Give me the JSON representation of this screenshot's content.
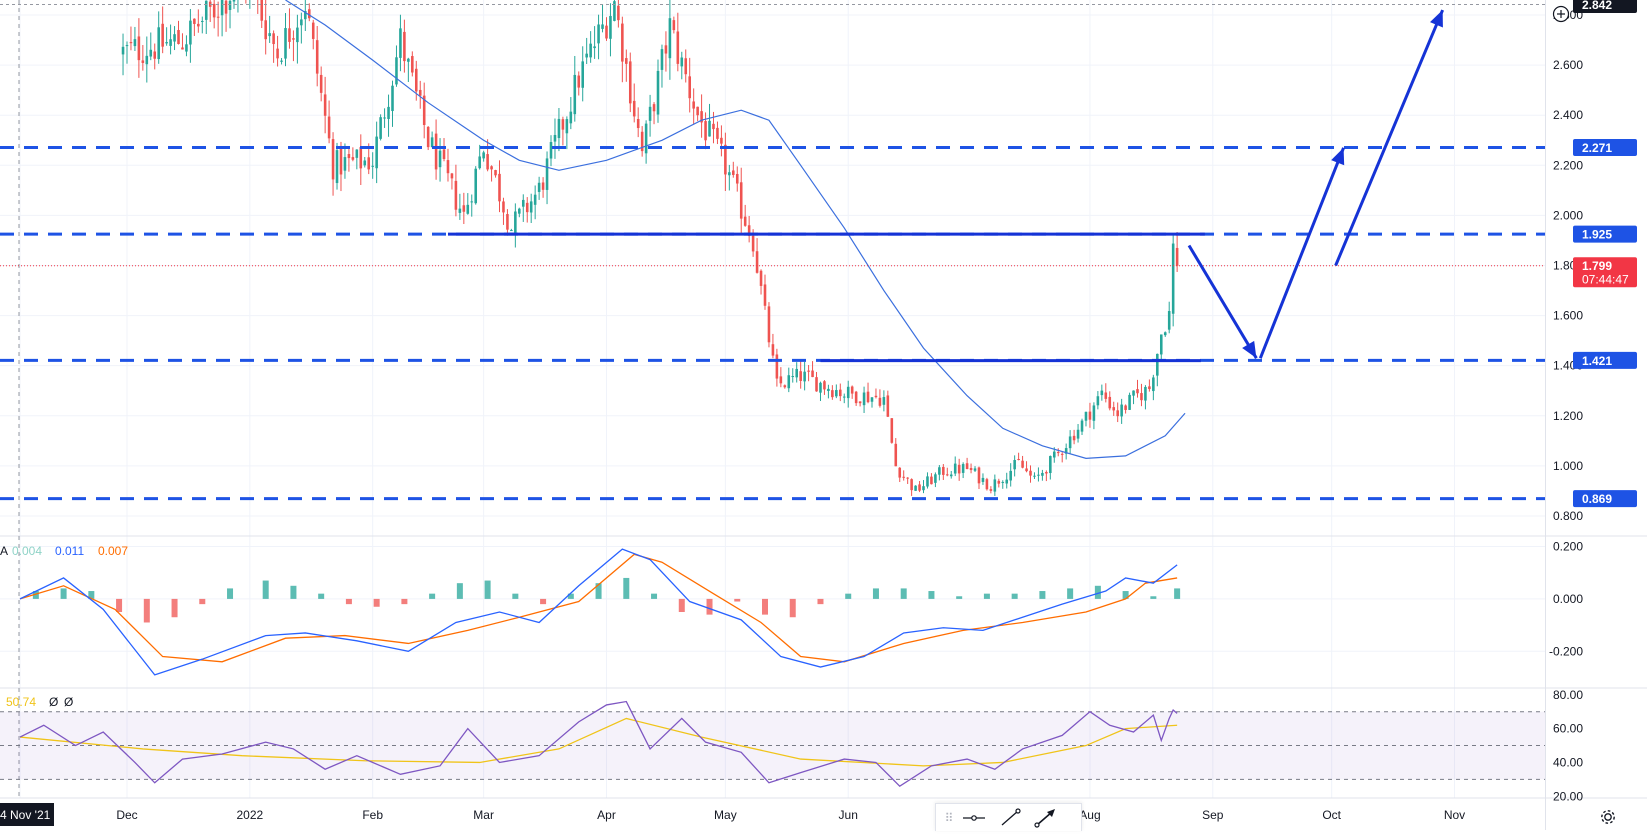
{
  "chart_data": [
    {
      "type": "candlestick",
      "panel": "price",
      "price_scale": {
        "ticks": [
          "2.800",
          "2.600",
          "2.400",
          "2.200",
          "2.000",
          "1.800",
          "1.600",
          "1.400",
          "1.200",
          "1.000",
          "0.800"
        ],
        "ylim": [
          0.72,
          2.86
        ]
      },
      "time_axis": {
        "labels": [
          "4 Nov '21",
          "Dec",
          "2022",
          "Feb",
          "Mar",
          "Apr",
          "May",
          "Jun",
          "Aug",
          "Sep",
          "Oct",
          "Nov"
        ],
        "range": [
          "2021-11-04",
          "2022-11-15"
        ]
      },
      "price_labels": [
        {
          "value": "2.842",
          "color": "#131722",
          "kind": "high"
        },
        {
          "value": "2.271",
          "color": "#1e53e5",
          "kind": "level"
        },
        {
          "value": "1.925",
          "color": "#1e53e5",
          "kind": "level"
        },
        {
          "value": "1.799",
          "color": "#f23645",
          "kind": "last",
          "countdown": "07:44:47"
        },
        {
          "value": "1.421",
          "color": "#1e53e5",
          "kind": "level"
        },
        {
          "value": "0.869",
          "color": "#1e53e5",
          "kind": "level"
        }
      ],
      "horizontal_levels": [
        2.842,
        2.271,
        1.925,
        1.421,
        0.869
      ],
      "solid_lines": [
        {
          "from": [
            "2022-02-20",
            1.925
          ],
          "to": [
            "2022-08-30",
            1.925
          ]
        },
        {
          "from": [
            "2022-05-25",
            1.42
          ],
          "to": [
            "2022-08-29",
            1.42
          ]
        }
      ],
      "projection_arrows": [
        {
          "from": [
            "2022-08-26",
            1.88
          ],
          "to": [
            "2022-09-12",
            1.43
          ]
        },
        {
          "from": [
            "2022-09-13",
            1.43
          ],
          "to": [
            "2022-10-04",
            2.27
          ]
        },
        {
          "from": [
            "2022-10-02",
            1.8
          ],
          "to": [
            "2022-10-29",
            2.82
          ]
        }
      ],
      "moving_average": {
        "name": "",
        "color": "#3b6fde",
        "points": [
          [
            "2022-01-10",
            2.86
          ],
          [
            "2022-01-20",
            2.76
          ],
          [
            "2022-02-01",
            2.62
          ],
          [
            "2022-02-15",
            2.45
          ],
          [
            "2022-03-01",
            2.3
          ],
          [
            "2022-03-10",
            2.22
          ],
          [
            "2022-03-20",
            2.18
          ],
          [
            "2022-04-01",
            2.22
          ],
          [
            "2022-04-15",
            2.3
          ],
          [
            "2022-04-25",
            2.38
          ],
          [
            "2022-05-05",
            2.42
          ],
          [
            "2022-05-12",
            2.38
          ],
          [
            "2022-05-20",
            2.2
          ],
          [
            "2022-05-31",
            1.95
          ],
          [
            "2022-06-10",
            1.7
          ],
          [
            "2022-06-20",
            1.47
          ],
          [
            "2022-07-01",
            1.28
          ],
          [
            "2022-07-10",
            1.15
          ],
          [
            "2022-07-20",
            1.08
          ],
          [
            "2022-07-31",
            1.03
          ],
          [
            "2022-08-10",
            1.04
          ],
          [
            "2022-08-20",
            1.12
          ],
          [
            "2022-08-25",
            1.21
          ]
        ]
      },
      "anchors": [
        [
          "2021-11-30",
          2.65
        ],
        [
          "2021-12-15",
          2.7
        ],
        [
          "2021-12-31",
          2.95
        ],
        [
          "2022-01-08",
          2.65
        ],
        [
          "2022-01-15",
          2.85
        ],
        [
          "2022-01-22",
          2.2
        ],
        [
          "2022-02-01",
          2.22
        ],
        [
          "2022-02-08",
          2.7
        ],
        [
          "2022-02-15",
          2.3
        ],
        [
          "2022-02-24",
          2.0
        ],
        [
          "2022-03-01",
          2.28
        ],
        [
          "2022-03-08",
          1.95
        ],
        [
          "2022-03-15",
          2.1
        ],
        [
          "2022-03-25",
          2.55
        ],
        [
          "2022-04-03",
          2.85
        ],
        [
          "2022-04-10",
          2.25
        ],
        [
          "2022-04-17",
          2.75
        ],
        [
          "2022-04-24",
          2.4
        ],
        [
          "2022-05-01",
          2.2
        ],
        [
          "2022-05-08",
          1.9
        ],
        [
          "2022-05-11",
          1.6
        ],
        [
          "2022-05-14",
          1.32
        ],
        [
          "2022-05-20",
          1.36
        ],
        [
          "2022-05-31",
          1.29
        ],
        [
          "2022-06-10",
          1.27
        ],
        [
          "2022-06-13",
          1.0
        ],
        [
          "2022-06-18",
          0.9
        ],
        [
          "2022-06-25",
          0.98
        ],
        [
          "2022-07-01",
          0.99
        ],
        [
          "2022-07-07",
          0.92
        ],
        [
          "2022-07-14",
          1.01
        ],
        [
          "2022-07-18",
          0.94
        ],
        [
          "2022-07-24",
          1.05
        ],
        [
          "2022-07-30",
          1.17
        ],
        [
          "2022-08-04",
          1.29
        ],
        [
          "2022-08-08",
          1.21
        ],
        [
          "2022-08-12",
          1.27
        ],
        [
          "2022-08-16",
          1.31
        ],
        [
          "2022-08-19",
          1.53
        ],
        [
          "2022-08-21",
          1.61
        ],
        [
          "2022-08-22",
          1.87
        ],
        [
          "2022-08-23",
          1.8
        ]
      ]
    },
    {
      "type": "macd",
      "panel": "macd",
      "legend": {
        "prefix": "A",
        "values": [
          "0.004",
          "0.011",
          "0.007"
        ],
        "colors": [
          "#8fd3c7",
          "#2962ff",
          "#ff6d00"
        ]
      },
      "scale": {
        "ticks": [
          "0.200",
          "0.000",
          "-0.200"
        ],
        "ylim": [
          -0.34,
          0.24
        ]
      },
      "macd_line": [
        [
          "2021-11-04",
          0.0
        ],
        [
          "2021-11-15",
          0.08
        ],
        [
          "2021-11-25",
          -0.04
        ],
        [
          "2021-12-08",
          -0.29
        ],
        [
          "2021-12-20",
          -0.23
        ],
        [
          "2022-01-05",
          -0.14
        ],
        [
          "2022-01-15",
          -0.13
        ],
        [
          "2022-01-28",
          -0.16
        ],
        [
          "2022-02-10",
          -0.2
        ],
        [
          "2022-02-22",
          -0.09
        ],
        [
          "2022-03-05",
          -0.05
        ],
        [
          "2022-03-15",
          -0.09
        ],
        [
          "2022-03-25",
          0.05
        ],
        [
          "2022-04-05",
          0.19
        ],
        [
          "2022-04-12",
          0.15
        ],
        [
          "2022-04-22",
          -0.01
        ],
        [
          "2022-05-05",
          -0.08
        ],
        [
          "2022-05-15",
          -0.22
        ],
        [
          "2022-05-25",
          -0.26
        ],
        [
          "2022-06-05",
          -0.22
        ],
        [
          "2022-06-15",
          -0.13
        ],
        [
          "2022-06-25",
          -0.11
        ],
        [
          "2022-07-05",
          -0.12
        ],
        [
          "2022-07-15",
          -0.07
        ],
        [
          "2022-07-25",
          -0.02
        ],
        [
          "2022-08-05",
          0.03
        ],
        [
          "2022-08-10",
          0.08
        ],
        [
          "2022-08-17",
          0.06
        ],
        [
          "2022-08-23",
          0.13
        ]
      ],
      "signal_line": [
        [
          "2021-11-04",
          0.0
        ],
        [
          "2021-11-15",
          0.05
        ],
        [
          "2021-11-28",
          -0.04
        ],
        [
          "2021-12-10",
          -0.22
        ],
        [
          "2021-12-25",
          -0.24
        ],
        [
          "2022-01-10",
          -0.15
        ],
        [
          "2022-01-25",
          -0.14
        ],
        [
          "2022-02-10",
          -0.17
        ],
        [
          "2022-02-25",
          -0.12
        ],
        [
          "2022-03-10",
          -0.07
        ],
        [
          "2022-03-25",
          -0.01
        ],
        [
          "2022-04-08",
          0.17
        ],
        [
          "2022-04-15",
          0.14
        ],
        [
          "2022-04-28",
          0.02
        ],
        [
          "2022-05-10",
          -0.09
        ],
        [
          "2022-05-20",
          -0.22
        ],
        [
          "2022-05-31",
          -0.24
        ],
        [
          "2022-06-15",
          -0.17
        ],
        [
          "2022-06-30",
          -0.12
        ],
        [
          "2022-07-15",
          -0.09
        ],
        [
          "2022-07-31",
          -0.05
        ],
        [
          "2022-08-10",
          0.0
        ],
        [
          "2022-08-15",
          0.06
        ],
        [
          "2022-08-23",
          0.08
        ]
      ],
      "histogram": [
        [
          "2021-11-08",
          0.03
        ],
        [
          "2021-11-15",
          0.04
        ],
        [
          "2021-11-22",
          0.03
        ],
        [
          "2021-11-29",
          -0.05
        ],
        [
          "2021-12-06",
          -0.09
        ],
        [
          "2021-12-13",
          -0.07
        ],
        [
          "2021-12-20",
          -0.02
        ],
        [
          "2021-12-27",
          0.04
        ],
        [
          "2022-01-05",
          0.07
        ],
        [
          "2022-01-12",
          0.05
        ],
        [
          "2022-01-19",
          0.02
        ],
        [
          "2022-01-26",
          -0.02
        ],
        [
          "2022-02-02",
          -0.03
        ],
        [
          "2022-02-09",
          -0.02
        ],
        [
          "2022-02-16",
          0.02
        ],
        [
          "2022-02-23",
          0.06
        ],
        [
          "2022-03-02",
          0.07
        ],
        [
          "2022-03-09",
          0.02
        ],
        [
          "2022-03-16",
          -0.02
        ],
        [
          "2022-03-23",
          0.02
        ],
        [
          "2022-03-30",
          0.06
        ],
        [
          "2022-04-06",
          0.08
        ],
        [
          "2022-04-13",
          0.02
        ],
        [
          "2022-04-20",
          -0.05
        ],
        [
          "2022-04-27",
          -0.06
        ],
        [
          "2022-05-04",
          -0.01
        ],
        [
          "2022-05-11",
          -0.06
        ],
        [
          "2022-05-18",
          -0.07
        ],
        [
          "2022-05-25",
          -0.02
        ],
        [
          "2022-06-01",
          0.02
        ],
        [
          "2022-06-08",
          0.04
        ],
        [
          "2022-06-15",
          0.04
        ],
        [
          "2022-06-22",
          0.03
        ],
        [
          "2022-06-29",
          0.01
        ],
        [
          "2022-07-06",
          0.02
        ],
        [
          "2022-07-13",
          0.02
        ],
        [
          "2022-07-20",
          0.03
        ],
        [
          "2022-07-27",
          0.04
        ],
        [
          "2022-08-03",
          0.05
        ],
        [
          "2022-08-10",
          0.03
        ],
        [
          "2022-08-17",
          0.01
        ],
        [
          "2022-08-23",
          0.04
        ]
      ]
    },
    {
      "type": "rsi",
      "panel": "rsi",
      "legend": {
        "values": [
          "50.74",
          "Ø",
          "Ø"
        ],
        "colors": [
          "#f0c419",
          "#131722",
          "#131722"
        ]
      },
      "scale": {
        "ticks": [
          "80.00",
          "60.00",
          "40.00",
          "20.00"
        ],
        "ylim": [
          19,
          84
        ]
      },
      "band": [
        30,
        70
      ],
      "midline": 50,
      "rsi_line": [
        [
          "2021-11-04",
          55
        ],
        [
          "2021-11-10",
          62
        ],
        [
          "2021-11-18",
          50
        ],
        [
          "2021-11-25",
          58
        ],
        [
          "2021-12-03",
          40
        ],
        [
          "2021-12-08",
          28
        ],
        [
          "2021-12-15",
          42
        ],
        [
          "2021-12-25",
          45
        ],
        [
          "2022-01-05",
          52
        ],
        [
          "2022-01-12",
          48
        ],
        [
          "2022-01-20",
          36
        ],
        [
          "2022-01-28",
          44
        ],
        [
          "2022-02-08",
          33
        ],
        [
          "2022-02-18",
          38
        ],
        [
          "2022-02-25",
          60
        ],
        [
          "2022-03-05",
          40
        ],
        [
          "2022-03-15",
          44
        ],
        [
          "2022-03-25",
          64
        ],
        [
          "2022-04-01",
          74
        ],
        [
          "2022-04-06",
          76
        ],
        [
          "2022-04-12",
          48
        ],
        [
          "2022-04-20",
          66
        ],
        [
          "2022-04-26",
          52
        ],
        [
          "2022-05-05",
          46
        ],
        [
          "2022-05-12",
          28
        ],
        [
          "2022-05-20",
          34
        ],
        [
          "2022-05-31",
          42
        ],
        [
          "2022-06-08",
          40
        ],
        [
          "2022-06-14",
          26
        ],
        [
          "2022-06-22",
          38
        ],
        [
          "2022-07-01",
          42
        ],
        [
          "2022-07-08",
          36
        ],
        [
          "2022-07-15",
          48
        ],
        [
          "2022-07-25",
          56
        ],
        [
          "2022-08-01",
          70
        ],
        [
          "2022-08-06",
          62
        ],
        [
          "2022-08-12",
          58
        ],
        [
          "2022-08-17",
          68
        ],
        [
          "2022-08-19",
          53
        ],
        [
          "2022-08-21",
          66
        ],
        [
          "2022-08-22",
          71
        ],
        [
          "2022-08-23",
          69
        ]
      ],
      "ma_line": [
        [
          "2021-11-04",
          55
        ],
        [
          "2021-12-05",
          48
        ],
        [
          "2021-12-30",
          44
        ],
        [
          "2022-01-30",
          41
        ],
        [
          "2022-02-28",
          40
        ],
        [
          "2022-03-20",
          48
        ],
        [
          "2022-04-06",
          66
        ],
        [
          "2022-04-25",
          55
        ],
        [
          "2022-05-20",
          42
        ],
        [
          "2022-06-20",
          38
        ],
        [
          "2022-07-10",
          40
        ],
        [
          "2022-07-31",
          50
        ],
        [
          "2022-08-10",
          60
        ],
        [
          "2022-08-23",
          62
        ]
      ]
    }
  ],
  "toolbar": {
    "tools": [
      "grip",
      "horizontal-ray",
      "trend-line",
      "arrow"
    ],
    "grip_glyph": "⠿"
  },
  "colors": {
    "up": "#26a69a",
    "down": "#ef5350",
    "level": "#1e53e5",
    "last_price": "#f23645",
    "ma": "#3b6fde",
    "rsi": "#7e57c2",
    "rsi_ma": "#f0c419",
    "macd": "#2962ff",
    "signal": "#ff6d00"
  }
}
